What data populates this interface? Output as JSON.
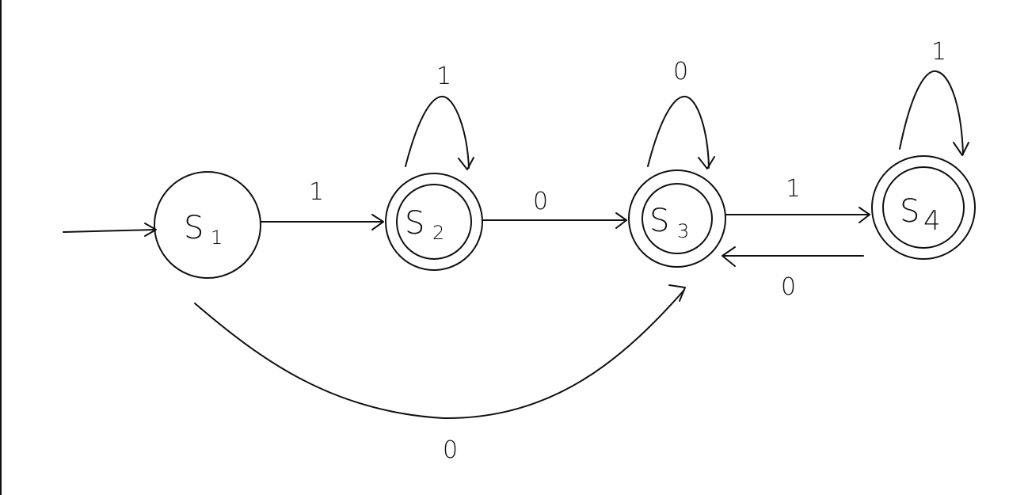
{
  "diagram": {
    "states": [
      {
        "id": "s1",
        "name": "S",
        "sub": "1",
        "accepting": false,
        "initial": true
      },
      {
        "id": "s2",
        "name": "S",
        "sub": "2",
        "accepting": true,
        "initial": false
      },
      {
        "id": "s3",
        "name": "S",
        "sub": "3",
        "accepting": true,
        "initial": false
      },
      {
        "id": "s4",
        "name": "S",
        "sub": "4",
        "accepting": true,
        "initial": false
      }
    ],
    "transitions": [
      {
        "from": "s1",
        "to": "s2",
        "label": "1"
      },
      {
        "from": "s2",
        "to": "s2",
        "label": "1"
      },
      {
        "from": "s2",
        "to": "s3",
        "label": "0"
      },
      {
        "from": "s3",
        "to": "s3",
        "label": "0"
      },
      {
        "from": "s3",
        "to": "s4",
        "label": "1"
      },
      {
        "from": "s4",
        "to": "s4",
        "label": "1"
      },
      {
        "from": "s4",
        "to": "s3",
        "label": "0"
      },
      {
        "from": "s1",
        "to": "s3",
        "label": "0"
      }
    ]
  }
}
